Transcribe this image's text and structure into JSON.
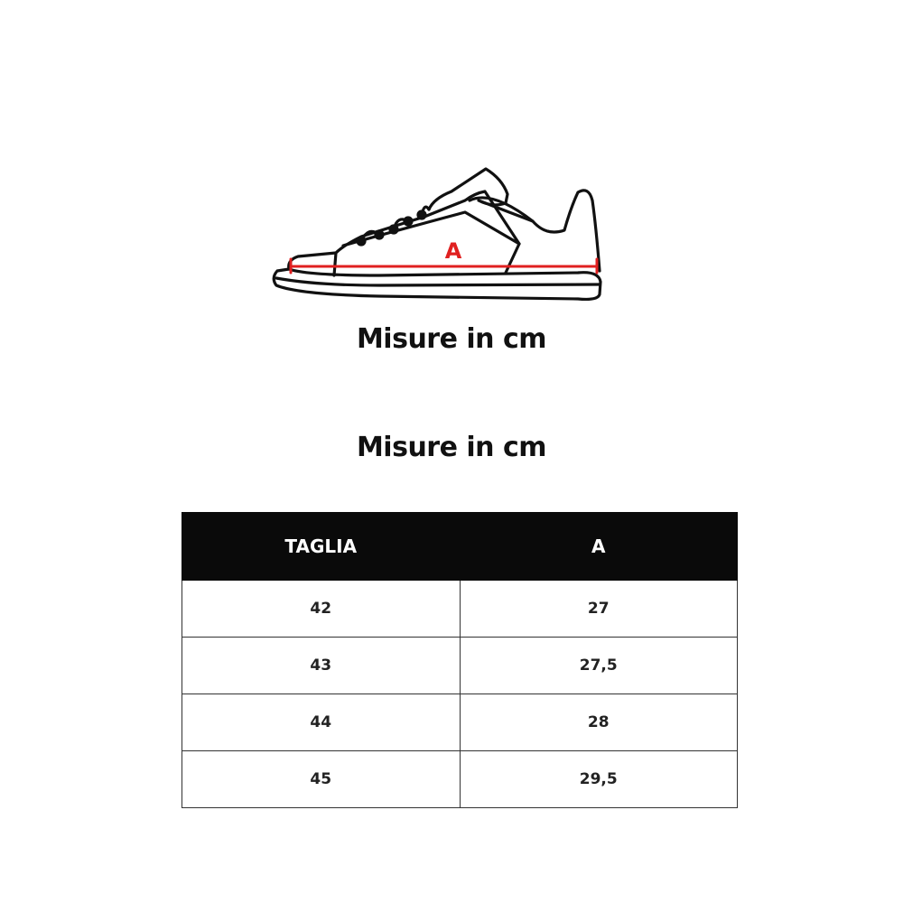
{
  "illustration": {
    "icon": "sneaker-side-outline",
    "measure_label": "A",
    "accent_color": "#e02020"
  },
  "caption": "Misure in cm",
  "table_title": "Misure in cm",
  "table": {
    "headers": [
      "TAGLIA",
      "A"
    ],
    "rows": [
      [
        "42",
        "27"
      ],
      [
        "43",
        "27,5"
      ],
      [
        "44",
        "28"
      ],
      [
        "45",
        "29,5"
      ]
    ]
  }
}
